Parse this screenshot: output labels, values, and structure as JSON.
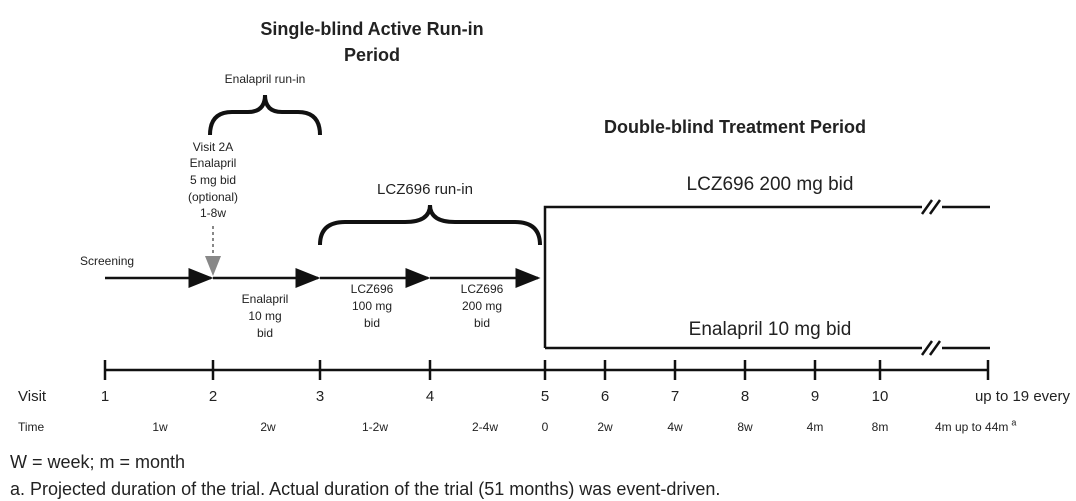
{
  "phase1": {
    "title_lines": [
      "Single-blind Active Run-in",
      "Period"
    ],
    "enalapril_runin": "Enalapril run-in",
    "visit2a_lines": [
      "Visit 2A",
      "Enalapril",
      "5 mg bid",
      "(optional)",
      "1-8w"
    ],
    "lcz_runin": "LCZ696 run-in",
    "screening": "Screening",
    "segments": [
      [
        "Enalapril",
        "10 mg",
        "bid"
      ],
      [
        "LCZ696",
        "100 mg",
        "bid"
      ],
      [
        "LCZ696",
        "200 mg",
        "bid"
      ]
    ]
  },
  "phase2": {
    "title": "Double-blind Treatment Period",
    "arm_upper": "LCZ696 200 mg bid",
    "arm_lower": "Enalapril 10 mg bid"
  },
  "timeline": {
    "visit_label": "Visit",
    "visits": [
      "1",
      "2",
      "3",
      "4",
      "5",
      "6",
      "7",
      "8",
      "9",
      "10",
      "up to 19 every"
    ],
    "time_label": "Time",
    "times": [
      "1w",
      "2w",
      "1-2w",
      "2-4w",
      "0",
      "2w",
      "4w",
      "8w",
      "4m",
      "8m",
      "4m up to 44m"
    ],
    "time_note": "a"
  },
  "footnotes": [
    "W = week; m = month",
    "a. Projected duration of the trial. Actual duration of the trial (51 months) was event-driven."
  ]
}
